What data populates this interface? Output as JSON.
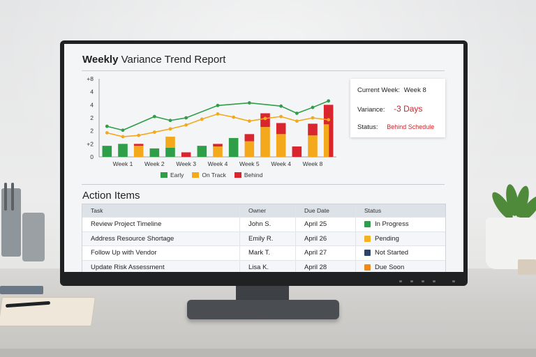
{
  "report": {
    "title_bold": "Weekly",
    "title_rest": " Variance Trend Report"
  },
  "chart_data": {
    "type": "bar",
    "categories": [
      "",
      "Week 1",
      "",
      "Week 2",
      "",
      "Week 3",
      "",
      "Week 4",
      "",
      "Week 5",
      "",
      "Week 4",
      "",
      "Week 8",
      ""
    ],
    "x_tick_labels": [
      "Week 1",
      "Week 2",
      "Week 3",
      "Week 4",
      "Week 5",
      "Week 4",
      "Week 8"
    ],
    "y_tick_labels": [
      "0",
      "+2",
      "2",
      "2",
      "4",
      "4",
      "+8"
    ],
    "ylim": [
      0,
      6
    ],
    "series": [
      {
        "name": "Early",
        "color": "#2e9e48",
        "values": [
          0.85,
          1.0,
          0,
          0.65,
          0.7,
          0,
          0.85,
          0,
          1.45,
          0,
          0,
          0,
          0,
          0,
          0
        ]
      },
      {
        "name": "On Track",
        "color": "#f4a81c",
        "values": [
          0,
          0,
          0.85,
          0,
          0.85,
          0,
          0,
          0.8,
          0,
          1.2,
          2.3,
          1.75,
          0,
          1.65,
          2.5
        ]
      },
      {
        "name": "Behind",
        "color": "#d9262e",
        "values": [
          0,
          0,
          0.15,
          0,
          0,
          0.35,
          0,
          0.2,
          0,
          0.55,
          1.05,
          0.85,
          0.8,
          0.9,
          1.5
        ]
      }
    ],
    "stacked_top_red": [
      0,
      0,
      0,
      0,
      0,
      0,
      0,
      0,
      0,
      0,
      0,
      0,
      0,
      0,
      2.85
    ],
    "lines": [
      {
        "name": "green-trend",
        "color": "#2e9e48",
        "values": [
          2.35,
          2.05,
          0,
          3.1,
          2.8,
          3.0,
          0,
          3.95,
          0,
          4.15,
          0,
          3.9,
          3.35,
          3.8,
          4.3
        ],
        "points_x": [
          1,
          2,
          3.5,
          4,
          5,
          6,
          7.5,
          8,
          9.5,
          10,
          11,
          12,
          13,
          14,
          15
        ]
      },
      {
        "name": "orange-trend",
        "color": "#f4a81c",
        "values": [
          1.85,
          1.55,
          1.65,
          1.9,
          2.15,
          2.45,
          2.9,
          3.3,
          3.05,
          2.75,
          2.95,
          3.1,
          2.75,
          3.0,
          2.85
        ]
      }
    ],
    "legend": [
      "Early",
      "On Track",
      "Behind"
    ],
    "legend_position": "bottom",
    "grid": false
  },
  "summary": {
    "current_week_label": "Current Week:",
    "current_week_value": "Week 8",
    "variance_label": "Variance:",
    "variance_value": "-3 Days",
    "status_label": "Status:",
    "status_value": "Behind Schedule"
  },
  "actions": {
    "title": "Action Items",
    "headers": [
      "Task",
      "Owner",
      "Due Date",
      "Status"
    ],
    "rows": [
      {
        "task": "Review Project Timeline",
        "owner": "John S.",
        "due": "April 25",
        "status": "In Progress",
        "color": "#2e9e48"
      },
      {
        "task": "Address Resource Shortage",
        "owner": "Emily R.",
        "due": "April 26",
        "status": "Pending",
        "color": "#f4b223"
      },
      {
        "task": "Follow Up with Vendor",
        "owner": "Mark T.",
        "due": "April 27",
        "status": "Not Started",
        "color": "#2f4368"
      },
      {
        "task": "Update Risk Assessment",
        "owner": "Lisa K.",
        "due": "April 28",
        "status": "Due Soon",
        "color": "#ee8a1c"
      }
    ]
  }
}
